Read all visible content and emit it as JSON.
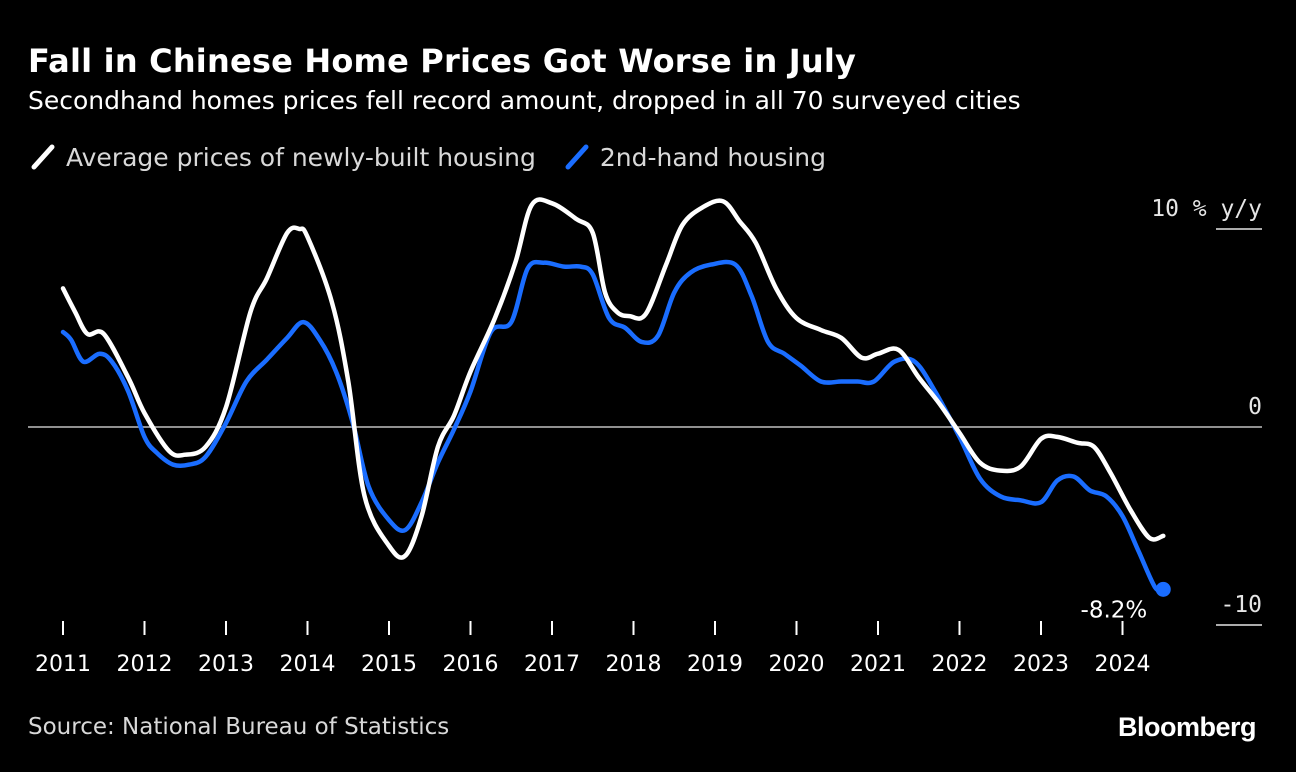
{
  "header": {
    "title": "Fall in Chinese Home Prices Got Worse in July",
    "subtitle": "Secondhand homes prices fell record amount, dropped in all 70 surveyed cities"
  },
  "footer": {
    "source": "Source: National Bureau of Statistics",
    "brand": "Bloomberg"
  },
  "colors": {
    "background": "#000000",
    "new_housing": "#ffffff",
    "second_hand": "#1a6dff",
    "zero_line": "#bfbfbf"
  },
  "chart_data": {
    "type": "line",
    "title": "Fall in Chinese Home Prices Got Worse in July",
    "subtitle": "Secondhand homes prices fell record amount, dropped in all 70 surveyed cities",
    "ylabel": "% y/y",
    "ylim": [
      -10,
      10
    ],
    "yticks": [
      {
        "value": 10,
        "label": "10 % y/y"
      },
      {
        "value": 0,
        "label": "0"
      },
      {
        "value": -10,
        "label": "-10"
      }
    ],
    "xticks": [
      "2011",
      "2012",
      "2013",
      "2014",
      "2015",
      "2016",
      "2017",
      "2018",
      "2019",
      "2020",
      "2021",
      "2022",
      "2023",
      "2024"
    ],
    "legend_position": "top-left",
    "grid": false,
    "series": [
      {
        "name": "Average prices of newly-built housing",
        "color": "#ffffff",
        "points": [
          [
            2011.0,
            7.0
          ],
          [
            2011.15,
            5.8
          ],
          [
            2011.3,
            4.7
          ],
          [
            2011.5,
            4.7
          ],
          [
            2011.8,
            2.5
          ],
          [
            2012.0,
            0.7
          ],
          [
            2012.3,
            -1.2
          ],
          [
            2012.5,
            -1.4
          ],
          [
            2012.75,
            -1.0
          ],
          [
            2013.0,
            1.0
          ],
          [
            2013.3,
            5.8
          ],
          [
            2013.5,
            7.5
          ],
          [
            2013.75,
            9.8
          ],
          [
            2013.9,
            10.0
          ],
          [
            2014.0,
            9.6
          ],
          [
            2014.3,
            6.3
          ],
          [
            2014.5,
            2.3
          ],
          [
            2014.7,
            -3.5
          ],
          [
            2015.0,
            -6.0
          ],
          [
            2015.2,
            -6.5
          ],
          [
            2015.4,
            -4.5
          ],
          [
            2015.6,
            -1.0
          ],
          [
            2015.8,
            0.6
          ],
          [
            2016.0,
            2.8
          ],
          [
            2016.3,
            5.5
          ],
          [
            2016.55,
            8.3
          ],
          [
            2016.75,
            11.2
          ],
          [
            2017.0,
            11.3
          ],
          [
            2017.3,
            10.5
          ],
          [
            2017.5,
            9.8
          ],
          [
            2017.65,
            6.8
          ],
          [
            2017.8,
            5.8
          ],
          [
            2017.95,
            5.6
          ],
          [
            2018.15,
            5.7
          ],
          [
            2018.4,
            8.2
          ],
          [
            2018.6,
            10.2
          ],
          [
            2018.85,
            11.1
          ],
          [
            2019.1,
            11.4
          ],
          [
            2019.3,
            10.4
          ],
          [
            2019.5,
            9.3
          ],
          [
            2019.75,
            7.0
          ],
          [
            2020.0,
            5.5
          ],
          [
            2020.3,
            4.9
          ],
          [
            2020.55,
            4.5
          ],
          [
            2020.8,
            3.5
          ],
          [
            2021.0,
            3.7
          ],
          [
            2021.25,
            3.9
          ],
          [
            2021.5,
            2.5
          ],
          [
            2021.75,
            1.2
          ],
          [
            2022.0,
            -0.3
          ],
          [
            2022.25,
            -1.8
          ],
          [
            2022.5,
            -2.2
          ],
          [
            2022.75,
            -2.0
          ],
          [
            2023.0,
            -0.6
          ],
          [
            2023.2,
            -0.5
          ],
          [
            2023.45,
            -0.8
          ],
          [
            2023.65,
            -1.0
          ],
          [
            2023.85,
            -2.3
          ],
          [
            2024.1,
            -4.2
          ],
          [
            2024.33,
            -5.6
          ],
          [
            2024.5,
            -5.5
          ]
        ]
      },
      {
        "name": "2nd-hand housing",
        "color": "#1a6dff",
        "points": [
          [
            2011.0,
            4.8
          ],
          [
            2011.1,
            4.4
          ],
          [
            2011.25,
            3.3
          ],
          [
            2011.45,
            3.7
          ],
          [
            2011.6,
            3.3
          ],
          [
            2011.8,
            1.8
          ],
          [
            2012.0,
            -0.5
          ],
          [
            2012.15,
            -1.3
          ],
          [
            2012.35,
            -1.9
          ],
          [
            2012.55,
            -1.9
          ],
          [
            2012.75,
            -1.5
          ],
          [
            2013.0,
            0.2
          ],
          [
            2013.25,
            2.3
          ],
          [
            2013.5,
            3.4
          ],
          [
            2013.75,
            4.5
          ],
          [
            2013.95,
            5.3
          ],
          [
            2014.15,
            4.4
          ],
          [
            2014.35,
            2.8
          ],
          [
            2014.55,
            0.3
          ],
          [
            2014.75,
            -3.0
          ],
          [
            2015.0,
            -4.7
          ],
          [
            2015.2,
            -5.2
          ],
          [
            2015.4,
            -3.8
          ],
          [
            2015.6,
            -1.8
          ],
          [
            2015.8,
            -0.1
          ],
          [
            2016.0,
            1.8
          ],
          [
            2016.25,
            4.8
          ],
          [
            2016.5,
            5.3
          ],
          [
            2016.7,
            8.0
          ],
          [
            2016.9,
            8.3
          ],
          [
            2017.15,
            8.1
          ],
          [
            2017.35,
            8.1
          ],
          [
            2017.5,
            7.7
          ],
          [
            2017.7,
            5.5
          ],
          [
            2017.9,
            5.0
          ],
          [
            2018.1,
            4.3
          ],
          [
            2018.3,
            4.6
          ],
          [
            2018.5,
            6.8
          ],
          [
            2018.7,
            7.8
          ],
          [
            2018.95,
            8.2
          ],
          [
            2019.25,
            8.2
          ],
          [
            2019.45,
            6.6
          ],
          [
            2019.65,
            4.3
          ],
          [
            2019.85,
            3.7
          ],
          [
            2020.05,
            3.1
          ],
          [
            2020.3,
            2.3
          ],
          [
            2020.55,
            2.3
          ],
          [
            2020.75,
            2.3
          ],
          [
            2020.95,
            2.3
          ],
          [
            2021.2,
            3.3
          ],
          [
            2021.45,
            3.3
          ],
          [
            2021.7,
            1.8
          ],
          [
            2022.0,
            -0.5
          ],
          [
            2022.25,
            -2.6
          ],
          [
            2022.5,
            -3.5
          ],
          [
            2022.75,
            -3.7
          ],
          [
            2023.0,
            -3.8
          ],
          [
            2023.2,
            -2.7
          ],
          [
            2023.4,
            -2.5
          ],
          [
            2023.6,
            -3.2
          ],
          [
            2023.8,
            -3.5
          ],
          [
            2024.0,
            -4.5
          ],
          [
            2024.2,
            -6.3
          ],
          [
            2024.4,
            -8.1
          ],
          [
            2024.5,
            -8.2
          ]
        ]
      }
    ],
    "annotations": [
      {
        "text": "-8.2%",
        "series": "2nd-hand housing",
        "x": 2024.5,
        "y": -8.2
      }
    ]
  }
}
